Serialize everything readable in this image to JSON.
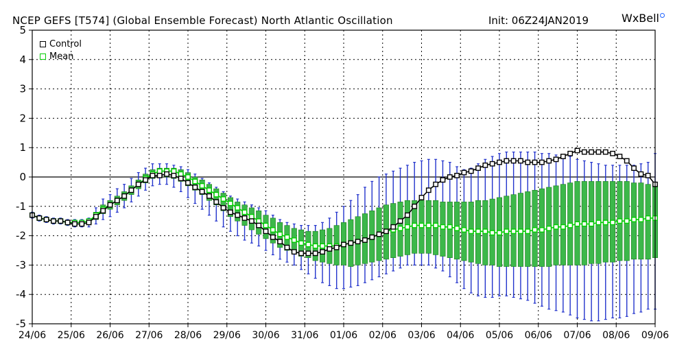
{
  "header": {
    "title": "NCEP GEFS [T574] (Global Ensemble Forecast) North Atlantic Oscillation",
    "init": "Init: 06Z24JAN2019",
    "brand": "WxBell"
  },
  "legend": [
    {
      "label": "Control",
      "color": "#000000"
    },
    {
      "label": "Mean",
      "color": "#00cc00"
    }
  ],
  "colors": {
    "control": "#000000",
    "mean": "#00cc00",
    "box_fill": "#3cb84a",
    "box_edge": "#1a7a1a",
    "whisker": "#2233cc",
    "grid": "#000000"
  },
  "chart_data": {
    "type": "line",
    "x_tick_labels": [
      "24/06",
      "25/06",
      "26/06",
      "27/06",
      "28/06",
      "29/06",
      "30/06",
      "31/06",
      "01/06",
      "02/06",
      "03/06",
      "04/06",
      "05/06",
      "06/06",
      "07/06",
      "08/06",
      "09/06"
    ],
    "xlim": [
      0,
      16
    ],
    "ylim": [
      -5,
      5
    ],
    "y_ticks": [
      5,
      4,
      3,
      2,
      1,
      0,
      -1,
      -2,
      -3,
      -4,
      -5
    ],
    "grid": true,
    "legend_position": "top-left",
    "series": [
      {
        "name": "Control",
        "values": [
          -1.3,
          -1.4,
          -1.45,
          -1.5,
          -1.5,
          -1.55,
          -1.6,
          -1.6,
          -1.55,
          -1.35,
          -1.15,
          -0.95,
          -0.8,
          -0.65,
          -0.45,
          -0.25,
          -0.1,
          0.05,
          0.05,
          0.1,
          0.05,
          -0.05,
          -0.2,
          -0.35,
          -0.5,
          -0.65,
          -0.85,
          -1.05,
          -1.2,
          -1.3,
          -1.4,
          -1.5,
          -1.65,
          -1.85,
          -2.05,
          -2.2,
          -2.4,
          -2.55,
          -2.6,
          -2.6,
          -2.6,
          -2.55,
          -2.45,
          -2.4,
          -2.3,
          -2.25,
          -2.2,
          -2.15,
          -2.05,
          -1.95,
          -1.85,
          -1.7,
          -1.5,
          -1.3,
          -1.0,
          -0.7,
          -0.45,
          -0.25,
          -0.1,
          0.0,
          0.05,
          0.15,
          0.2,
          0.3,
          0.4,
          0.45,
          0.5,
          0.55,
          0.55,
          0.55,
          0.5,
          0.5,
          0.5,
          0.55,
          0.6,
          0.7,
          0.8,
          0.9,
          0.85,
          0.85,
          0.85,
          0.85,
          0.8,
          0.7,
          0.55,
          0.3,
          0.1,
          0.05,
          -0.25
        ]
      },
      {
        "name": "Mean",
        "values": [
          -1.3,
          -1.4,
          -1.45,
          -1.5,
          -1.5,
          -1.55,
          -1.55,
          -1.55,
          -1.5,
          -1.3,
          -1.1,
          -0.95,
          -0.8,
          -0.65,
          -0.45,
          -0.25,
          -0.05,
          0.1,
          0.2,
          0.2,
          0.2,
          0.1,
          0.0,
          -0.15,
          -0.3,
          -0.45,
          -0.6,
          -0.75,
          -0.9,
          -1.05,
          -1.2,
          -1.35,
          -1.5,
          -1.65,
          -1.8,
          -1.95,
          -2.05,
          -2.15,
          -2.25,
          -2.3,
          -2.35,
          -2.35,
          -2.35,
          -2.35,
          -2.3,
          -2.25,
          -2.2,
          -2.15,
          -2.05,
          -1.95,
          -1.85,
          -1.8,
          -1.75,
          -1.7,
          -1.65,
          -1.65,
          -1.65,
          -1.65,
          -1.7,
          -1.7,
          -1.75,
          -1.8,
          -1.85,
          -1.85,
          -1.85,
          -1.9,
          -1.9,
          -1.85,
          -1.85,
          -1.85,
          -1.85,
          -1.8,
          -1.8,
          -1.75,
          -1.7,
          -1.7,
          -1.65,
          -1.6,
          -1.6,
          -1.6,
          -1.55,
          -1.55,
          -1.55,
          -1.5,
          -1.5,
          -1.45,
          -1.45,
          -1.4,
          -1.4
        ]
      },
      {
        "name": "Spread Q1",
        "values": [
          -1.35,
          -1.45,
          -1.5,
          -1.55,
          -1.55,
          -1.6,
          -1.65,
          -1.65,
          -1.6,
          -1.45,
          -1.25,
          -1.1,
          -0.95,
          -0.8,
          -0.6,
          -0.4,
          -0.2,
          -0.05,
          0.0,
          0.0,
          -0.05,
          -0.15,
          -0.3,
          -0.45,
          -0.6,
          -0.8,
          -0.95,
          -1.15,
          -1.35,
          -1.5,
          -1.65,
          -1.8,
          -1.95,
          -2.1,
          -2.25,
          -2.4,
          -2.5,
          -2.6,
          -2.7,
          -2.75,
          -2.85,
          -2.9,
          -2.95,
          -3.0,
          -3.0,
          -3.05,
          -3.0,
          -2.95,
          -2.9,
          -2.85,
          -2.8,
          -2.75,
          -2.7,
          -2.65,
          -2.6,
          -2.6,
          -2.6,
          -2.65,
          -2.7,
          -2.75,
          -2.8,
          -2.85,
          -2.9,
          -2.95,
          -3.0,
          -3.0,
          -3.05,
          -3.05,
          -3.05,
          -3.05,
          -3.05,
          -3.05,
          -3.05,
          -3.05,
          -3.0,
          -3.0,
          -3.0,
          -3.0,
          -3.0,
          -2.95,
          -2.95,
          -2.9,
          -2.9,
          -2.85,
          -2.85,
          -2.8,
          -2.8,
          -2.8,
          -2.75
        ]
      },
      {
        "name": "Spread Q3",
        "values": [
          -1.25,
          -1.35,
          -1.4,
          -1.45,
          -1.45,
          -1.5,
          -1.5,
          -1.5,
          -1.45,
          -1.2,
          -0.95,
          -0.8,
          -0.65,
          -0.5,
          -0.3,
          -0.1,
          0.1,
          0.25,
          0.3,
          0.3,
          0.3,
          0.25,
          0.15,
          0.0,
          -0.1,
          -0.25,
          -0.4,
          -0.55,
          -0.7,
          -0.85,
          -0.95,
          -1.05,
          -1.15,
          -1.3,
          -1.4,
          -1.55,
          -1.65,
          -1.75,
          -1.8,
          -1.85,
          -1.85,
          -1.8,
          -1.75,
          -1.65,
          -1.55,
          -1.45,
          -1.35,
          -1.25,
          -1.15,
          -1.05,
          -0.95,
          -0.9,
          -0.85,
          -0.8,
          -0.8,
          -0.8,
          -0.8,
          -0.8,
          -0.85,
          -0.85,
          -0.85,
          -0.85,
          -0.85,
          -0.8,
          -0.8,
          -0.75,
          -0.7,
          -0.65,
          -0.6,
          -0.55,
          -0.5,
          -0.45,
          -0.4,
          -0.35,
          -0.3,
          -0.25,
          -0.2,
          -0.15,
          -0.15,
          -0.15,
          -0.15,
          -0.15,
          -0.15,
          -0.15,
          -0.15,
          -0.2,
          -0.2,
          -0.25,
          -0.3
        ]
      },
      {
        "name": "Spread Min",
        "values": [
          -1.4,
          -1.5,
          -1.55,
          -1.6,
          -1.6,
          -1.65,
          -1.7,
          -1.7,
          -1.7,
          -1.6,
          -1.45,
          -1.35,
          -1.2,
          -1.05,
          -0.85,
          -0.65,
          -0.45,
          -0.3,
          -0.25,
          -0.25,
          -0.35,
          -0.5,
          -0.7,
          -0.9,
          -1.1,
          -1.3,
          -1.5,
          -1.7,
          -1.85,
          -2.0,
          -2.15,
          -2.25,
          -2.35,
          -2.5,
          -2.65,
          -2.8,
          -2.9,
          -3.0,
          -3.15,
          -3.3,
          -3.45,
          -3.6,
          -3.7,
          -3.8,
          -3.8,
          -3.75,
          -3.7,
          -3.6,
          -3.5,
          -3.4,
          -3.3,
          -3.2,
          -3.1,
          -3.0,
          -3.0,
          -3.0,
          -3.0,
          -3.1,
          -3.2,
          -3.4,
          -3.6,
          -3.8,
          -3.95,
          -4.05,
          -4.1,
          -4.1,
          -4.05,
          -4.05,
          -4.1,
          -4.15,
          -4.2,
          -4.3,
          -4.4,
          -4.5,
          -4.55,
          -4.6,
          -4.7,
          -4.8,
          -4.85,
          -4.9,
          -4.9,
          -4.85,
          -4.8,
          -4.8,
          -4.75,
          -4.65,
          -4.6,
          -4.5,
          -4.5
        ]
      },
      {
        "name": "Spread Max",
        "values": [
          -1.2,
          -1.3,
          -1.35,
          -1.4,
          -1.4,
          -1.45,
          -1.45,
          -1.45,
          -1.4,
          -1.05,
          -0.75,
          -0.6,
          -0.4,
          -0.25,
          -0.05,
          0.15,
          0.3,
          0.45,
          0.45,
          0.45,
          0.4,
          0.35,
          0.25,
          0.1,
          -0.05,
          -0.2,
          -0.35,
          -0.5,
          -0.65,
          -0.75,
          -0.85,
          -0.95,
          -1.05,
          -1.15,
          -1.3,
          -1.45,
          -1.55,
          -1.6,
          -1.65,
          -1.65,
          -1.65,
          -1.55,
          -1.4,
          -1.2,
          -1.0,
          -0.8,
          -0.6,
          -0.35,
          -0.15,
          0.0,
          0.1,
          0.2,
          0.3,
          0.4,
          0.5,
          0.55,
          0.6,
          0.6,
          0.55,
          0.5,
          0.35,
          0.25,
          0.3,
          0.45,
          0.6,
          0.7,
          0.8,
          0.85,
          0.85,
          0.85,
          0.85,
          0.85,
          0.8,
          0.8,
          0.75,
          0.75,
          0.7,
          0.6,
          0.55,
          0.5,
          0.45,
          0.4,
          0.4,
          0.4,
          0.4,
          0.4,
          0.45,
          0.5,
          0.8
        ]
      }
    ]
  }
}
